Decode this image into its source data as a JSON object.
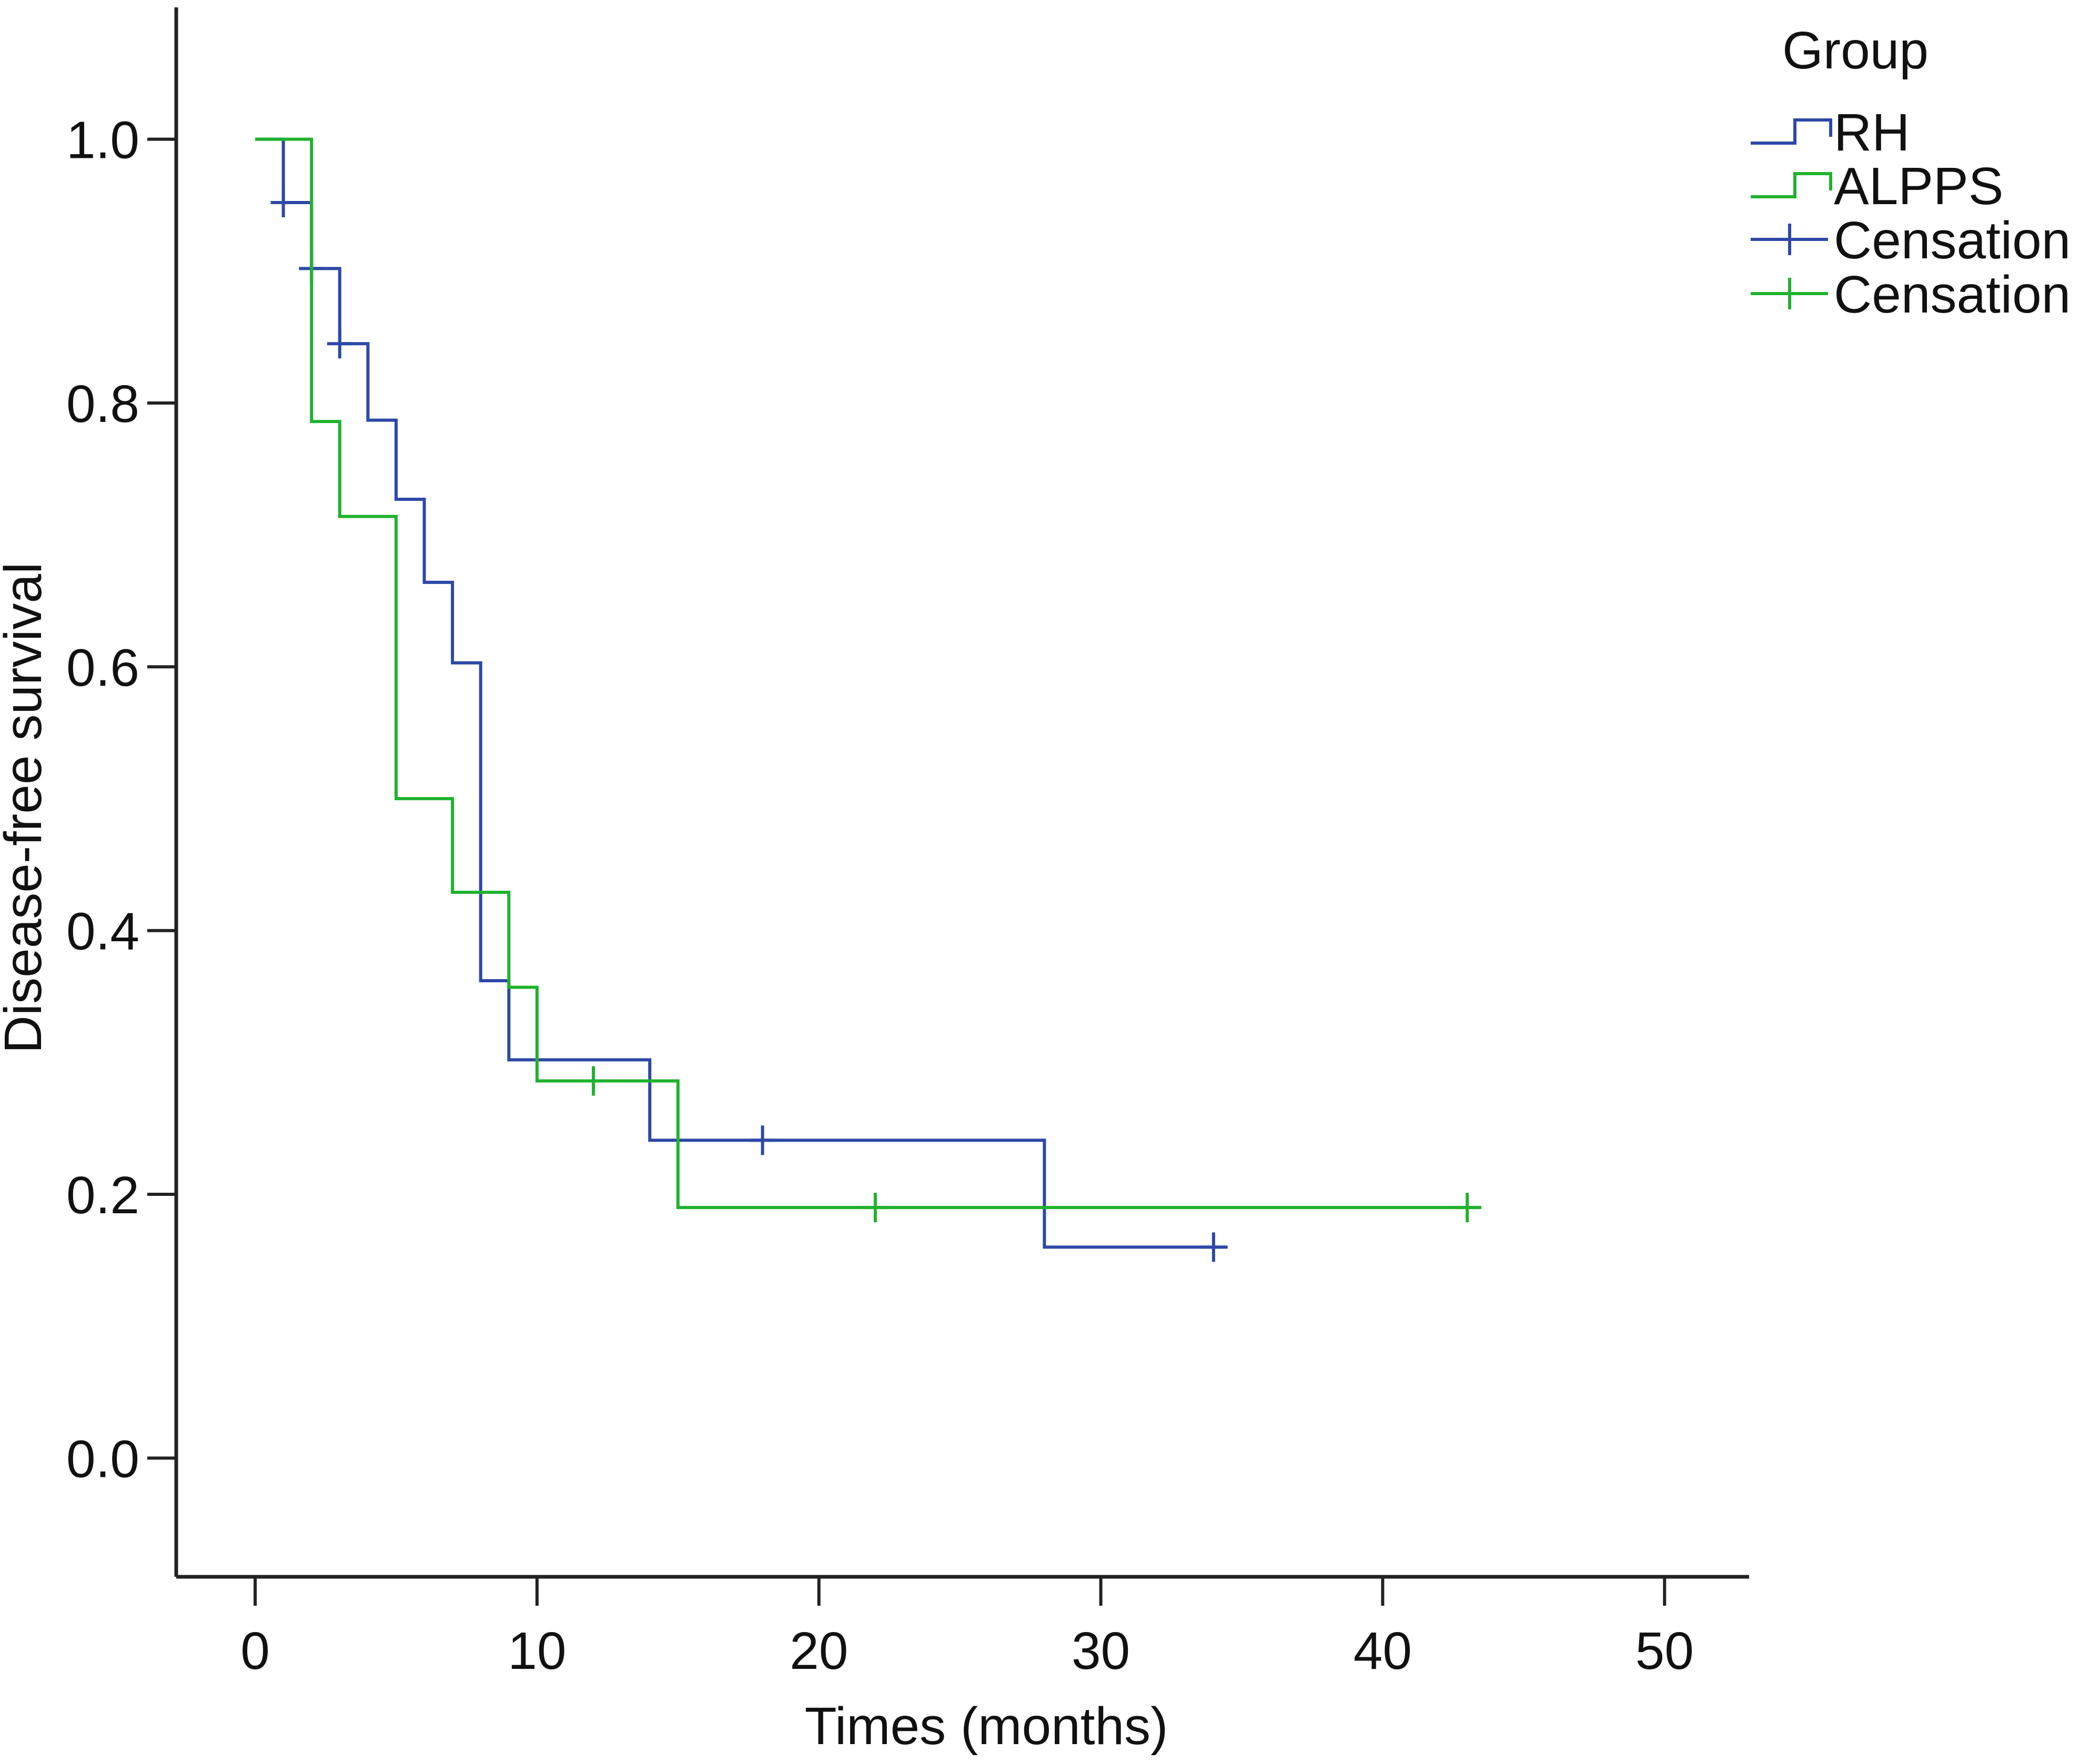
{
  "chart_data": {
    "type": "line",
    "subtype": "kaplan-meier step",
    "title": "",
    "xlabel": "Times (months)",
    "ylabel": "Disease-free survival",
    "xlim": [
      -2.8,
      53
    ],
    "ylim": [
      -0.09,
      1.1
    ],
    "xticks": [
      0,
      10,
      20,
      30,
      40,
      50
    ],
    "xtick_labels": [
      "0",
      "10",
      "20",
      "30",
      "40",
      "50"
    ],
    "yticks": [
      0.0,
      0.2,
      0.4,
      0.6,
      0.8,
      1.0
    ],
    "ytick_labels": [
      "0.0",
      "0.2",
      "0.4",
      "0.6",
      "0.8",
      "1.0"
    ],
    "grid": false,
    "legend": {
      "title": "Group",
      "placement": "top-right",
      "entries": [
        {
          "label": "RH",
          "kind": "step",
          "color": "#2d48a6"
        },
        {
          "label": "ALPPS",
          "kind": "step",
          "color": "#1fb22e"
        },
        {
          "label": "Censation",
          "kind": "censor",
          "color": "#2d48a6"
        },
        {
          "label": "Censation",
          "kind": "censor",
          "color": "#1fb22e"
        }
      ]
    },
    "series": [
      {
        "name": "RH",
        "color": "#2d48a6",
        "steps": [
          [
            0,
            1.0
          ],
          [
            1,
            0.952
          ],
          [
            2,
            0.902
          ],
          [
            3,
            0.845
          ],
          [
            4,
            0.787
          ],
          [
            5,
            0.727
          ],
          [
            6,
            0.664
          ],
          [
            7,
            0.603
          ],
          [
            8,
            0.362
          ],
          [
            9,
            0.302
          ],
          [
            14,
            0.241
          ],
          [
            28,
            0.16
          ],
          [
            34.5,
            0.16
          ]
        ],
        "censored": [
          [
            1,
            0.952
          ],
          [
            2,
            0.902
          ],
          [
            3,
            0.845
          ],
          [
            18,
            0.241
          ],
          [
            34,
            0.16
          ]
        ]
      },
      {
        "name": "ALPPS",
        "color": "#1fb22e",
        "steps": [
          [
            0,
            1.0
          ],
          [
            2,
            0.786
          ],
          [
            3,
            0.714
          ],
          [
            5,
            0.5
          ],
          [
            7,
            0.429
          ],
          [
            9,
            0.357
          ],
          [
            10,
            0.286
          ],
          [
            15,
            0.19
          ],
          [
            43.5,
            0.19
          ]
        ],
        "censored": [
          [
            12,
            0.286
          ],
          [
            22,
            0.19
          ],
          [
            43,
            0.19
          ]
        ]
      }
    ]
  }
}
